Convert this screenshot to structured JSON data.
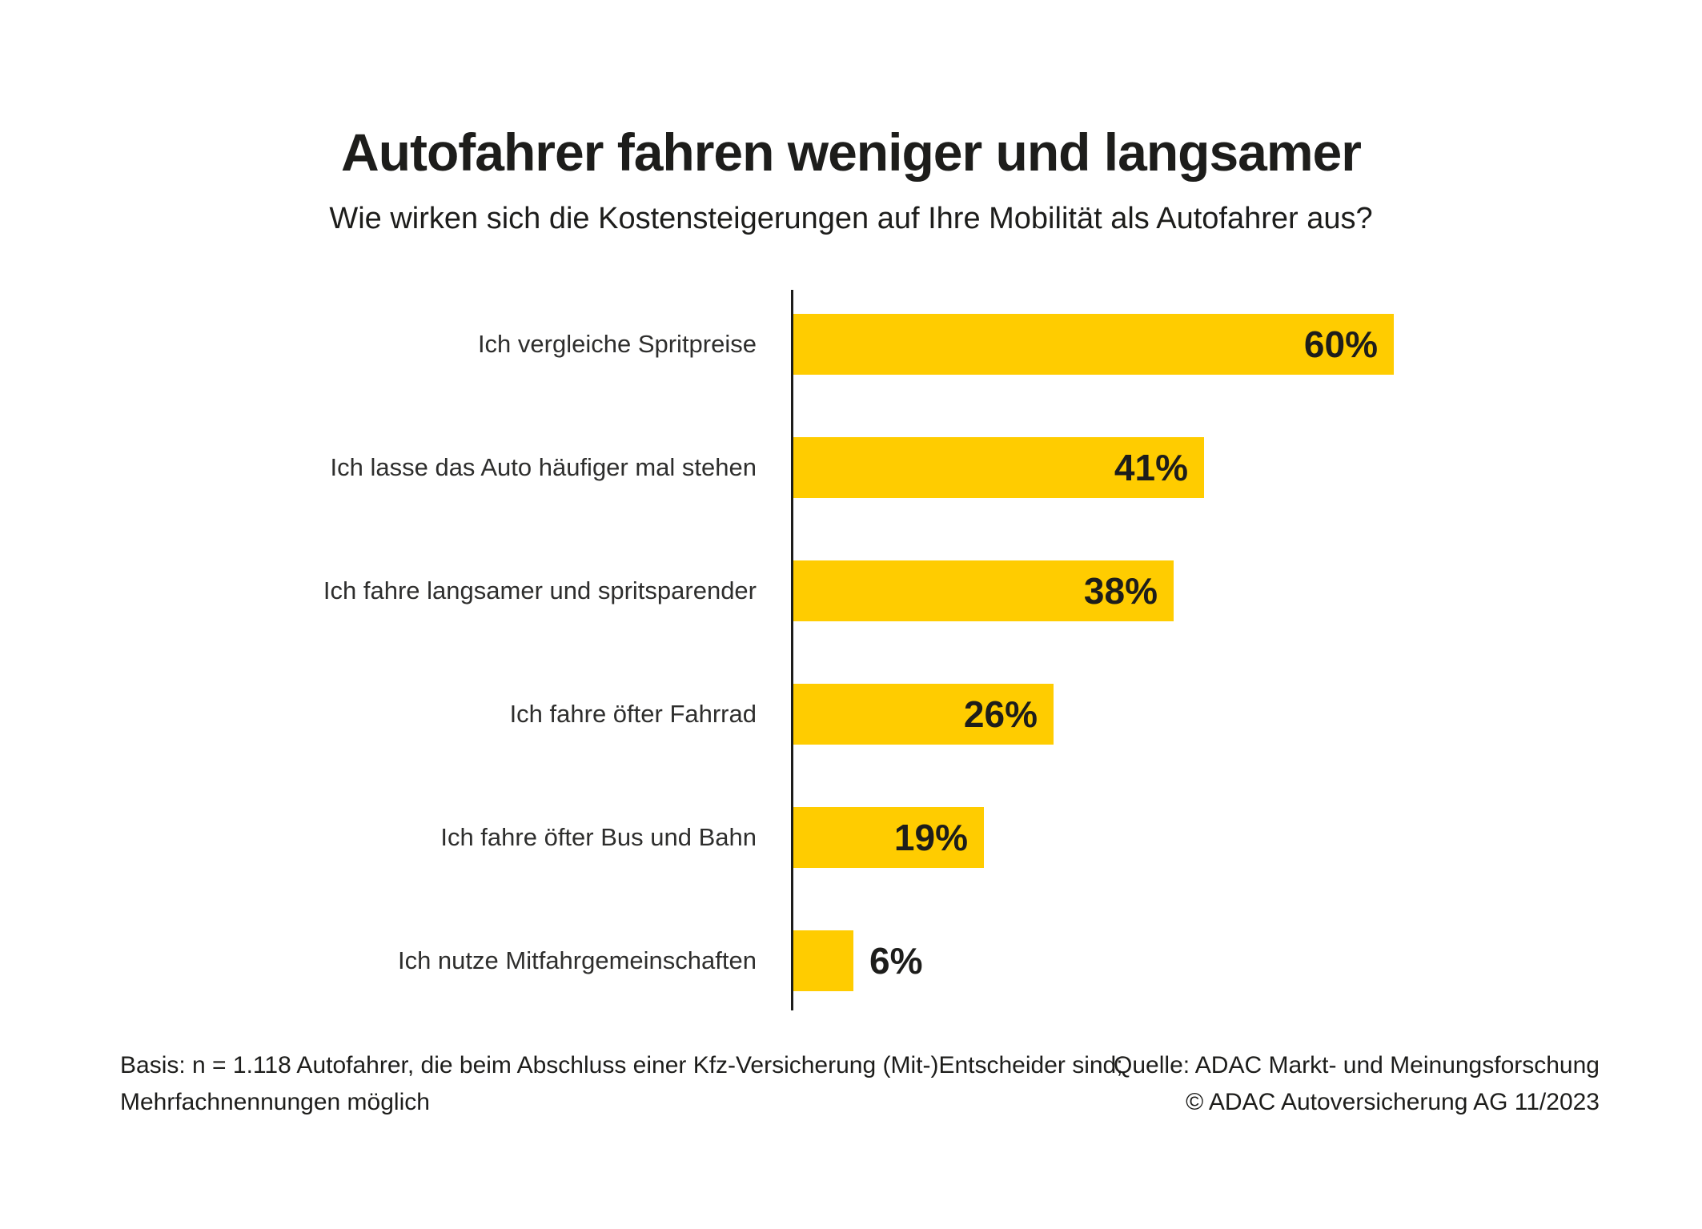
{
  "header": {
    "title": "Autofahrer fahren weniger und langsamer",
    "subtitle": "Wie wirken sich die Kostensteigerungen auf Ihre Mobilität als Autofahrer aus?"
  },
  "chart_data": {
    "type": "bar",
    "orientation": "horizontal",
    "title": "Autofahrer fahren weniger und langsamer",
    "subtitle": "Wie wirken sich die Kostensteigerungen auf Ihre Mobilität als Autofahrer aus?",
    "categories": [
      "Ich vergleiche Spritpreise",
      "Ich lasse das Auto häufiger mal stehen",
      "Ich fahre langsamer und spritsparender",
      "Ich fahre öfter Fahrrad",
      "Ich fahre öfter Bus und Bahn",
      "Ich nutze Mitfahrgemeinschaften"
    ],
    "values": [
      60,
      41,
      38,
      26,
      19,
      6
    ],
    "value_labels": [
      "60%",
      "41%",
      "38%",
      "26%",
      "19%",
      "6%"
    ],
    "xlabel": "",
    "ylabel": "",
    "xlim": [
      0,
      60
    ],
    "grid": false,
    "legend": false,
    "bar_color": "#FFCC00",
    "value_label_position": "inside-end, outside for smallest bar"
  },
  "footer": {
    "basis_line1": "Basis: n = 1.118 Autofahrer, die beim Abschluss einer Kfz-Versicherung (Mit-)Entscheider sind;",
    "basis_line2": "Mehrfachnennungen möglich",
    "source_line1": "Quelle: ADAC Markt- und Meinungsforschung",
    "source_line2": "© ADAC Autoversicherung AG 11/2023"
  },
  "colors": {
    "bar": "#FFCC00",
    "text": "#1D1D1B",
    "axis": "#1D1D1B",
    "background": "#FFFFFF"
  }
}
